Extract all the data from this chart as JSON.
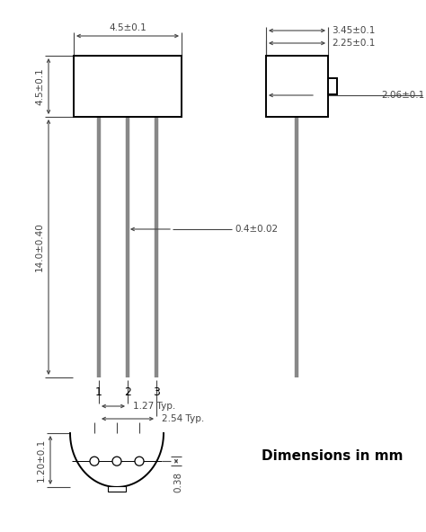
{
  "bg_color": "#ffffff",
  "line_color": "#000000",
  "dim_color": "#444444",
  "title": "Dimensions in mm",
  "title_fontsize": 11,
  "label_fontsize": 7.5,
  "pin_labels": [
    "1",
    "2",
    "3"
  ],
  "annotations": {
    "top_width": "4.5±0.1",
    "body_height": "4.5±0.1",
    "lead_length": "14.0±0.40",
    "lead_diameter": "0.4±0.02",
    "pitch_1": "1.27 Typ.",
    "pitch_2": "2.54 Typ.",
    "side_width": "3.45±0.1",
    "side_tab": "2.25±0.1",
    "side_thickness": "2.06±0.1",
    "base_diameter": "1.20±0.1",
    "pin_diameter": "0.38"
  }
}
